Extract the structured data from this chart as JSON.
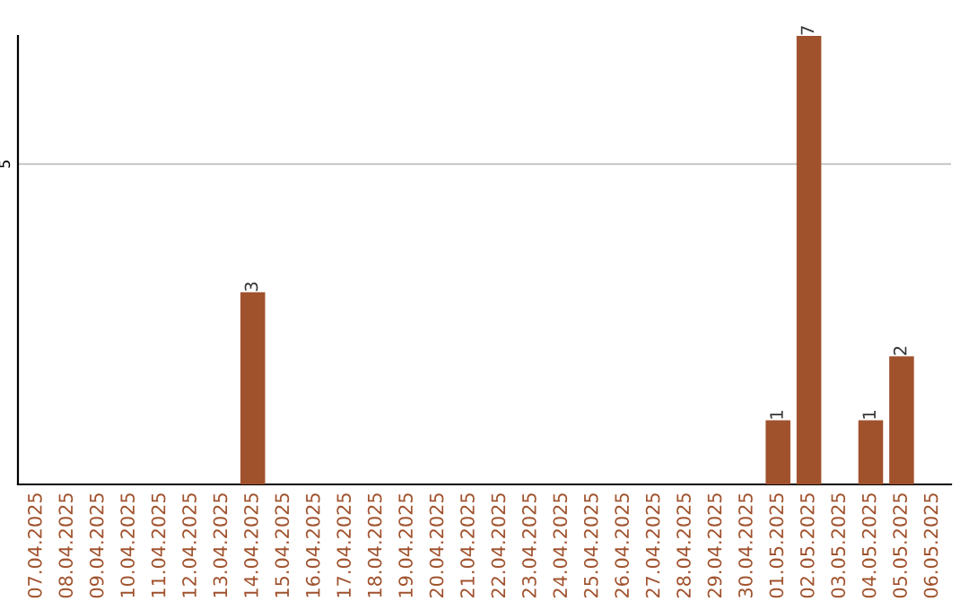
{
  "chart_data": {
    "type": "bar",
    "categories": [
      "07.04.2025",
      "08.04.2025",
      "09.04.2025",
      "10.04.2025",
      "11.04.2025",
      "12.04.2025",
      "13.04.2025",
      "14.04.2025",
      "15.04.2025",
      "16.04.2025",
      "17.04.2025",
      "18.04.2025",
      "19.04.2025",
      "20.04.2025",
      "21.04.2025",
      "22.04.2025",
      "23.04.2025",
      "24.04.2025",
      "25.04.2025",
      "26.04.2025",
      "27.04.2025",
      "28.04.2025",
      "29.04.2025",
      "30.04.2025",
      "01.05.2025",
      "02.05.2025",
      "03.05.2025",
      "04.05.2025",
      "05.05.2025",
      "06.05.2025"
    ],
    "values": [
      0,
      0,
      0,
      0,
      0,
      0,
      0,
      3,
      0,
      0,
      0,
      0,
      0,
      0,
      0,
      0,
      0,
      0,
      0,
      0,
      0,
      0,
      0,
      0,
      1,
      7,
      0,
      1,
      2,
      0
    ],
    "value_labels": [
      null,
      null,
      null,
      null,
      null,
      null,
      null,
      "3",
      null,
      null,
      null,
      null,
      null,
      null,
      null,
      null,
      null,
      null,
      null,
      null,
      null,
      null,
      null,
      null,
      "1",
      "7",
      null,
      "1",
      "2",
      null
    ],
    "color": "#a0522d",
    "ylim": [
      0,
      7
    ],
    "yticks": [
      5
    ],
    "grid": "y"
  }
}
